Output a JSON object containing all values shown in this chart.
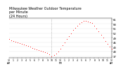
{
  "title": "Milwaukee Weather Outdoor Temperature\nper Minute\n(24 Hours)",
  "line_color": "#ff0000",
  "background_color": "#ffffff",
  "vline_x": 600,
  "ylim": [
    36,
    62
  ],
  "xlim": [
    0,
    1440
  ],
  "title_fontsize": 3.5,
  "tick_fontsize": 2.8,
  "y_ticks": [
    37,
    40,
    43,
    46,
    49,
    52,
    55,
    58,
    61
  ],
  "data_x": [
    0,
    30,
    60,
    90,
    120,
    150,
    180,
    210,
    240,
    270,
    300,
    330,
    360,
    390,
    420,
    450,
    480,
    510,
    540,
    570,
    600,
    630,
    660,
    690,
    720,
    750,
    780,
    810,
    840,
    870,
    900,
    930,
    960,
    990,
    1020,
    1050,
    1080,
    1110,
    1140,
    1170,
    1200,
    1230,
    1260,
    1290,
    1320,
    1350,
    1380,
    1410,
    1440
  ],
  "data_y": [
    48,
    47.5,
    47,
    46.5,
    46,
    45.5,
    45,
    44.5,
    44,
    43.5,
    43,
    42.5,
    42,
    41.5,
    41,
    40.5,
    40,
    39.5,
    39,
    38,
    37,
    37.5,
    38.5,
    40,
    42,
    44,
    46,
    48,
    50,
    52,
    54,
    55.5,
    57,
    58,
    59,
    60,
    60,
    59.5,
    59,
    58.5,
    57,
    55,
    53,
    51,
    49,
    47,
    45,
    43,
    42
  ],
  "x_ticks": [
    0,
    60,
    120,
    180,
    240,
    300,
    360,
    420,
    480,
    540,
    600,
    660,
    720,
    780,
    840,
    900,
    960,
    1020,
    1080,
    1140,
    1200,
    1260,
    1320,
    1380,
    1440
  ],
  "x_tick_labels": [
    "12\nAM",
    "1",
    "2",
    "3",
    "4",
    "5",
    "6",
    "7",
    "8",
    "9",
    "10",
    "11",
    "12\nPM",
    "1",
    "2",
    "3",
    "4",
    "5",
    "6",
    "7",
    "8",
    "9",
    "10",
    "11",
    "12\nAM"
  ]
}
